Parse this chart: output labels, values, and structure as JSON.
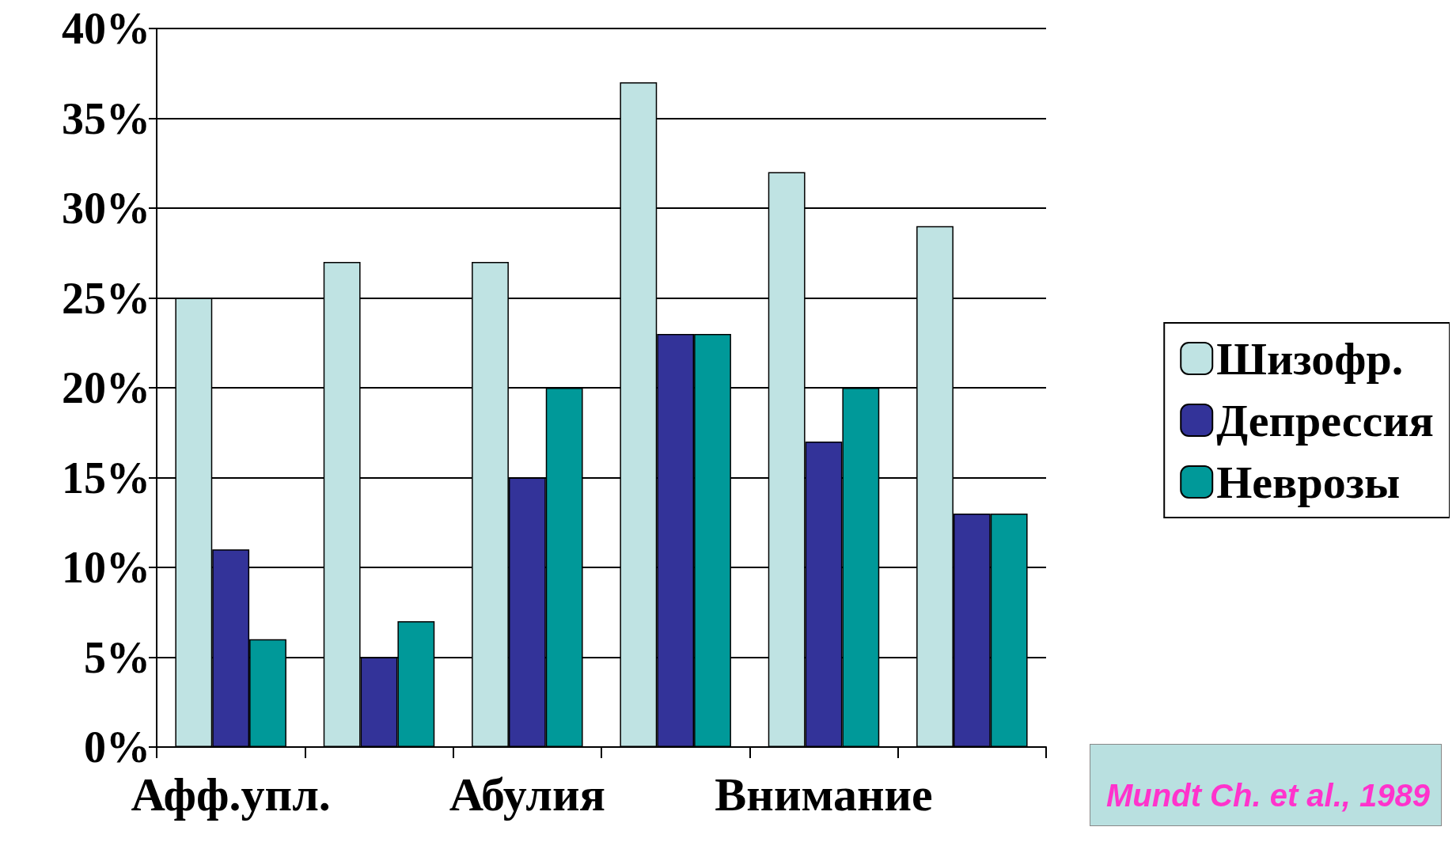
{
  "chart_data": {
    "type": "bar",
    "categories": [
      "Афф.упл.",
      null,
      "Абулия",
      null,
      "Внимание",
      null
    ],
    "series": [
      {
        "name": "Шизофр.",
        "color": "#bfe3e3",
        "values": [
          25,
          27,
          27,
          37,
          32,
          29
        ]
      },
      {
        "name": "Депрессия",
        "color": "#333399",
        "values": [
          11,
          5,
          15,
          23,
          17,
          13
        ]
      },
      {
        "name": "Неврозы",
        "color": "#009999",
        "values": [
          6,
          7,
          20,
          23,
          20,
          13
        ]
      }
    ],
    "ylim": [
      0,
      40
    ],
    "yticks": [
      {
        "value": 0,
        "label": "0%"
      },
      {
        "value": 5,
        "label": "5%"
      },
      {
        "value": 10,
        "label": "10%"
      },
      {
        "value": 15,
        "label": "15%"
      },
      {
        "value": 20,
        "label": "20%"
      },
      {
        "value": 25,
        "label": "25%"
      },
      {
        "value": 30,
        "label": "30%"
      },
      {
        "value": 35,
        "label": "35%"
      },
      {
        "value": 40,
        "label": "40%"
      }
    ],
    "grid": "y",
    "legend": "right",
    "annotations": [
      "Mundt Ch. et al., 1989"
    ]
  }
}
